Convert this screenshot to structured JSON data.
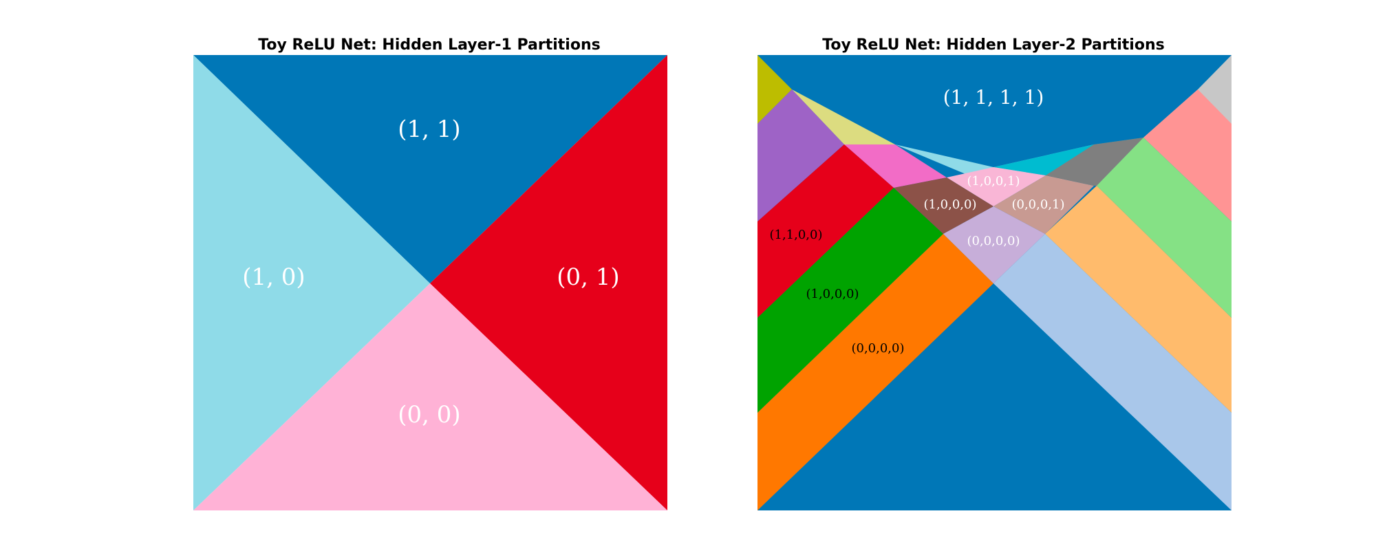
{
  "panels": [
    {
      "title": "Toy ReLU Net: Hidden Layer-1 Partitions",
      "labels": [
        "(1, 1)",
        "(1, 0)",
        "(0, 1)",
        "(0, 0)"
      ]
    },
    {
      "title": "Toy ReLU Net: Hidden Layer-2 Partitions",
      "labels": [
        "(1, 1, 1, 1)",
        "(1,0,0,1)",
        "(1,0,0,0)",
        "(0,0,0,1)",
        "(0,0,0,0)",
        "(1,1,0,0)",
        "(1,0,0,0)",
        "(0,0,0,0)"
      ]
    }
  ],
  "colors": {
    "blue": "#0077b7",
    "light_cyan": "#8fdbe8",
    "red": "#e6001a",
    "pink": "#ffb2d6",
    "olive": "#bdbd00",
    "khaki": "#dcdc80",
    "purple": "#9e63c6",
    "magenta": "#f26cc6",
    "cyan": "#00bcd0",
    "light_pink": "#f9b6d6",
    "brown": "#8c5248",
    "rose_brown": "#c89a92",
    "lavender": "#c7aed9",
    "gray": "#7f7f7f",
    "light_gray": "#c7c7c7",
    "salmon": "#ff9494",
    "light_green": "#85e185",
    "green": "#00a300",
    "orange": "#ff7800",
    "light_orange": "#ffbb6c",
    "light_blue": "#a9c7ea"
  }
}
